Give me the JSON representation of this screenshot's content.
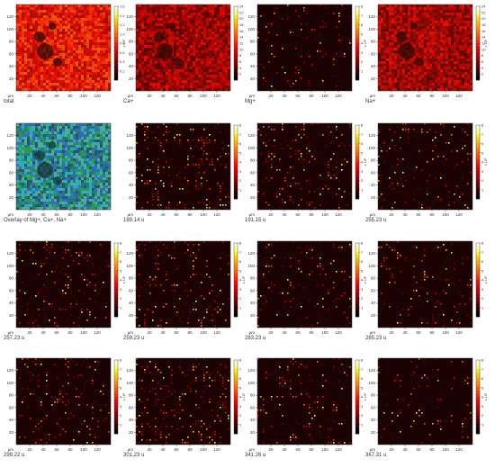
{
  "figure": {
    "axis_unit": "µm",
    "x_ticks": [
      "20",
      "40",
      "60",
      "80",
      "100",
      "120"
    ],
    "y_ticks": [
      "20",
      "40",
      "60",
      "80",
      "100",
      "120"
    ],
    "panels": [
      {
        "caption": "total",
        "map": "total",
        "cb": [
          0,
          1.6
        ],
        "cb_ticks": [
          "0.2",
          "0.4",
          "0.6",
          "0.8",
          "1.0",
          "1.2",
          "1.4",
          "1.6"
        ],
        "cb_exp": "x 10²",
        "density": 1.0
      },
      {
        "caption": "Ca+",
        "map": "ca",
        "cb": [
          0,
          24
        ],
        "cb_ticks": [
          "2",
          "4",
          "6",
          "8",
          "10",
          "12",
          "14",
          "16",
          "18",
          "20",
          "22",
          "24"
        ],
        "cb_exp": "",
        "density": 0.75
      },
      {
        "caption": "Mg+",
        "map": "sparse",
        "cb": [
          0,
          8
        ],
        "cb_ticks": [
          "1",
          "2",
          "3",
          "4",
          "5",
          "6",
          "7",
          "8"
        ],
        "cb_exp": "x 10¹",
        "density": 0.15
      },
      {
        "caption": "Na+",
        "map": "na",
        "cb": [
          0,
          24
        ],
        "cb_ticks": [
          "2",
          "4",
          "6",
          "8",
          "10",
          "12",
          "14",
          "16",
          "18",
          "20",
          "22",
          "24"
        ],
        "cb_exp": "x 10¹",
        "density": 0.7
      },
      {
        "caption": "Overlay of Mg+, Ca+, Na+",
        "map": "overlay",
        "cb": null,
        "cb_ticks": [],
        "cb_exp": "",
        "density": 1.0
      },
      {
        "caption": "189.14 u",
        "map": "sparse",
        "cb": [
          0,
          8
        ],
        "cb_ticks": [
          "1",
          "2",
          "3",
          "4",
          "5",
          "6",
          "7",
          "8"
        ],
        "cb_exp": "",
        "density": 0.3
      },
      {
        "caption": "191.15 u",
        "map": "sparse",
        "cb": [
          0,
          8
        ],
        "cb_ticks": [
          "1",
          "2",
          "3",
          "4",
          "5",
          "6",
          "7",
          "8"
        ],
        "cb_exp": "x 10¹",
        "density": 0.2
      },
      {
        "caption": "255.23 u",
        "map": "sparse",
        "cb": [
          0,
          8
        ],
        "cb_ticks": [
          "1",
          "2",
          "3",
          "4",
          "5",
          "6",
          "7",
          "8"
        ],
        "cb_exp": "x 10¹",
        "density": 0.18
      },
      {
        "caption": "257.23 u",
        "map": "sparse",
        "cb": [
          0,
          8
        ],
        "cb_ticks": [
          "1",
          "2",
          "3",
          "4",
          "5",
          "6",
          "7",
          "8"
        ],
        "cb_exp": "x 10¹",
        "density": 0.2
      },
      {
        "caption": "259.23 u",
        "map": "sparse",
        "cb": [
          0,
          8
        ],
        "cb_ticks": [
          "1",
          "2",
          "3",
          "4",
          "5",
          "6",
          "7",
          "8"
        ],
        "cb_exp": "x 10¹",
        "density": 0.2
      },
      {
        "caption": "283.23 u",
        "map": "sparse",
        "cb": [
          0,
          8
        ],
        "cb_ticks": [
          "1",
          "2",
          "3",
          "4",
          "5",
          "6",
          "7",
          "8"
        ],
        "cb_exp": "x 10¹",
        "density": 0.15
      },
      {
        "caption": "285.23 u",
        "map": "sparse",
        "cb": [
          0,
          8
        ],
        "cb_ticks": [
          "1",
          "2",
          "3",
          "4",
          "5",
          "6",
          "7",
          "8"
        ],
        "cb_exp": "x 10¹",
        "density": 0.2
      },
      {
        "caption": "299.22 u",
        "map": "sparse",
        "cb": [
          0,
          8
        ],
        "cb_ticks": [
          "1",
          "2",
          "3",
          "4",
          "5",
          "6",
          "7",
          "8"
        ],
        "cb_exp": "x 10¹",
        "density": 0.22
      },
      {
        "caption": "301.23 u",
        "map": "sparse",
        "cb": [
          0,
          8
        ],
        "cb_ticks": [
          "1",
          "2",
          "3",
          "4",
          "5",
          "6",
          "7",
          "8"
        ],
        "cb_exp": "x 10¹",
        "density": 0.28
      },
      {
        "caption": "341.26 u",
        "map": "sparse",
        "cb": [
          0,
          8
        ],
        "cb_ticks": [
          "1",
          "2",
          "3",
          "4",
          "5",
          "6",
          "7",
          "8"
        ],
        "cb_exp": "x 10¹",
        "density": 0.18
      },
      {
        "caption": "367.31 u",
        "map": "sparse",
        "cb": [
          0,
          8
        ],
        "cb_ticks": [
          "1",
          "2",
          "3",
          "4",
          "5",
          "6",
          "7",
          "8"
        ],
        "cb_exp": "x 10¹",
        "density": 0.1
      }
    ]
  },
  "chart_data": {
    "type": "heatmap",
    "x_axis": {
      "unit": "µm",
      "range": [
        0,
        140
      ],
      "ticks": [
        20,
        40,
        60,
        80,
        100,
        120
      ]
    },
    "y_axis": {
      "unit": "µm",
      "range": [
        0,
        140
      ],
      "ticks": [
        20,
        40,
        60,
        80,
        100,
        120
      ]
    },
    "maps": [
      {
        "label": "total",
        "colorbar_range": [
          0,
          160
        ],
        "colorbar_multiplier": "x 10²"
      },
      {
        "label": "Ca+",
        "colorbar_range": [
          0,
          24
        ]
      },
      {
        "label": "Mg+",
        "colorbar_range": [
          0,
          8
        ],
        "colorbar_multiplier": "x 10¹"
      },
      {
        "label": "Na+",
        "colorbar_range": [
          0,
          24
        ],
        "colorbar_multiplier": "x 10¹"
      },
      {
        "label": "Overlay of Mg+, Ca+, Na+"
      },
      {
        "label": "189.14 u",
        "colorbar_range": [
          0,
          8
        ]
      },
      {
        "label": "191.15 u",
        "colorbar_range": [
          0,
          8
        ]
      },
      {
        "label": "255.23 u",
        "colorbar_range": [
          0,
          8
        ]
      },
      {
        "label": "257.23 u",
        "colorbar_range": [
          0,
          8
        ]
      },
      {
        "label": "259.23 u",
        "colorbar_range": [
          0,
          8
        ]
      },
      {
        "label": "283.23 u",
        "colorbar_range": [
          0,
          8
        ]
      },
      {
        "label": "285.23 u",
        "colorbar_range": [
          0,
          8
        ]
      },
      {
        "label": "299.22 u",
        "colorbar_range": [
          0,
          8
        ]
      },
      {
        "label": "301.23 u",
        "colorbar_range": [
          0,
          8
        ]
      },
      {
        "label": "341.26 u",
        "colorbar_range": [
          0,
          8
        ]
      },
      {
        "label": "367.31 u",
        "colorbar_range": [
          0,
          8
        ]
      }
    ],
    "colormap": "black-red-yellow-white (thermal)",
    "overlay_colors": {
      "Mg+": "#2e9e3a",
      "Ca+": "#3a5fd6",
      "Na+": "#22b8c8"
    },
    "grid": false
  }
}
